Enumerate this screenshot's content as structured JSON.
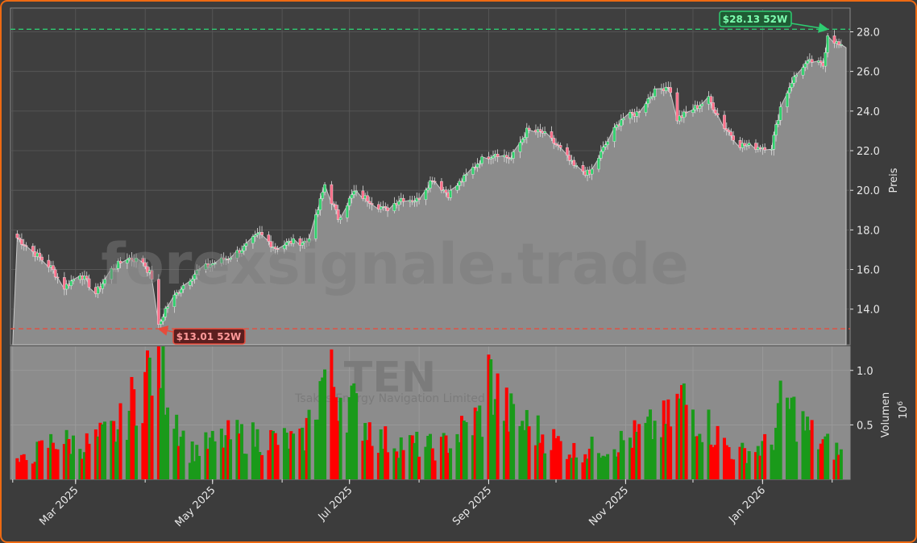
{
  "chart_data": [
    {
      "type": "candlestick",
      "ticker": "TEN",
      "watermark": "forexsignale.trade",
      "company_name": "Tsakos Energy Navigation Limited",
      "ylabel": "Preis",
      "ylim": [
        12.2,
        29.2
      ],
      "yticks": [
        "14.0",
        "16.0",
        "18.0",
        "20.0",
        "22.0",
        "24.0",
        "26.0",
        "28.0"
      ],
      "xlim": [
        "2025-01-31",
        "2026-02-09"
      ],
      "xticks": [
        {
          "date": "2025-03-01",
          "label": "Mar 2025"
        },
        {
          "date": "2025-05-01",
          "label": "May 2025"
        },
        {
          "date": "2025-07-01",
          "label": "Jul 2025"
        },
        {
          "date": "2025-09-01",
          "label": "Sep 2025"
        },
        {
          "date": "2025-11-01",
          "label": "Nov 2025"
        },
        {
          "date": "2026-01-01",
          "label": "Jan 2026"
        }
      ],
      "high_52w": {
        "value": 28.13,
        "label": "$28.13 52W",
        "date": "2026-01-30"
      },
      "low_52w": {
        "value": 13.01,
        "label": "$13.01 52W",
        "date": "2025-04-07"
      },
      "last_close": 27.2,
      "colors": {
        "up": "#1a9a1a",
        "down": "#ff0000",
        "high_line": "#2ecc71",
        "low_line": "#e74c3c",
        "area": "#8c8c8c",
        "grid": "#5a5a5a"
      },
      "close_series": [
        {
          "date": "2025-02-01",
          "close": 17.8
        },
        {
          "date": "2025-02-10",
          "close": 16.9
        },
        {
          "date": "2025-02-18",
          "close": 16.1
        },
        {
          "date": "2025-02-24",
          "close": 15.1
        },
        {
          "date": "2025-03-03",
          "close": 15.8
        },
        {
          "date": "2025-03-10",
          "close": 14.8
        },
        {
          "date": "2025-03-17",
          "close": 16.0
        },
        {
          "date": "2025-03-24",
          "close": 16.6
        },
        {
          "date": "2025-03-31",
          "close": 16.4
        },
        {
          "date": "2025-04-04",
          "close": 15.6
        },
        {
          "date": "2025-04-07",
          "close": 13.1
        },
        {
          "date": "2025-04-10",
          "close": 14.0
        },
        {
          "date": "2025-04-17",
          "close": 15.1
        },
        {
          "date": "2025-04-24",
          "close": 15.9
        },
        {
          "date": "2025-05-01",
          "close": 16.3
        },
        {
          "date": "2025-05-08",
          "close": 16.6
        },
        {
          "date": "2025-05-15",
          "close": 17.1
        },
        {
          "date": "2025-05-22",
          "close": 17.8
        },
        {
          "date": "2025-05-29",
          "close": 17.1
        },
        {
          "date": "2025-06-05",
          "close": 17.4
        },
        {
          "date": "2025-06-12",
          "close": 17.4
        },
        {
          "date": "2025-06-16",
          "close": 18.6
        },
        {
          "date": "2025-06-20",
          "close": 20.3
        },
        {
          "date": "2025-06-26",
          "close": 18.6
        },
        {
          "date": "2025-07-03",
          "close": 19.9
        },
        {
          "date": "2025-07-10",
          "close": 19.5
        },
        {
          "date": "2025-07-17",
          "close": 19.0
        },
        {
          "date": "2025-07-24",
          "close": 19.6
        },
        {
          "date": "2025-07-31",
          "close": 19.5
        },
        {
          "date": "2025-08-07",
          "close": 20.6
        },
        {
          "date": "2025-08-14",
          "close": 19.8
        },
        {
          "date": "2025-08-21",
          "close": 20.6
        },
        {
          "date": "2025-08-28",
          "close": 21.5
        },
        {
          "date": "2025-09-04",
          "close": 21.9
        },
        {
          "date": "2025-09-11",
          "close": 21.6
        },
        {
          "date": "2025-09-18",
          "close": 23.0
        },
        {
          "date": "2025-09-25",
          "close": 22.9
        },
        {
          "date": "2025-10-02",
          "close": 22.2
        },
        {
          "date": "2025-10-09",
          "close": 21.2
        },
        {
          "date": "2025-10-16",
          "close": 20.8
        },
        {
          "date": "2025-10-23",
          "close": 22.3
        },
        {
          "date": "2025-10-30",
          "close": 23.6
        },
        {
          "date": "2025-11-06",
          "close": 23.9
        },
        {
          "date": "2025-11-13",
          "close": 24.9
        },
        {
          "date": "2025-11-20",
          "close": 25.3
        },
        {
          "date": "2025-11-24",
          "close": 23.6
        },
        {
          "date": "2025-12-01",
          "close": 24.1
        },
        {
          "date": "2025-12-08",
          "close": 24.6
        },
        {
          "date": "2025-12-15",
          "close": 23.2
        },
        {
          "date": "2025-12-22",
          "close": 22.3
        },
        {
          "date": "2025-12-29",
          "close": 22.2
        },
        {
          "date": "2026-01-05",
          "close": 22.2
        },
        {
          "date": "2026-01-09",
          "close": 24.2
        },
        {
          "date": "2026-01-14",
          "close": 25.5
        },
        {
          "date": "2026-01-19",
          "close": 26.3
        },
        {
          "date": "2026-01-23",
          "close": 26.5
        },
        {
          "date": "2026-01-28",
          "close": 26.3
        },
        {
          "date": "2026-01-30",
          "close": 27.9
        },
        {
          "date": "2026-02-05",
          "close": 27.2
        }
      ]
    },
    {
      "type": "bar",
      "ylabel": "Volumen",
      "yscale_label": "10",
      "yscale_exp": "6",
      "ylim": [
        0,
        1.22
      ],
      "yticks": [
        "0.5",
        "1.0"
      ],
      "series_info": "green = up day, red = down day",
      "volume_points": [
        {
          "date": "2025-02-05",
          "value": 0.17
        },
        {
          "date": "2025-02-20",
          "value": 0.38
        },
        {
          "date": "2025-03-05",
          "value": 0.33
        },
        {
          "date": "2025-03-20",
          "value": 0.48
        },
        {
          "date": "2025-04-07",
          "value": 1.22
        },
        {
          "date": "2025-04-09",
          "value": 1.05
        },
        {
          "date": "2025-04-20",
          "value": 0.26
        },
        {
          "date": "2025-05-10",
          "value": 0.42
        },
        {
          "date": "2025-06-10",
          "value": 0.36
        },
        {
          "date": "2025-06-20",
          "value": 1.02
        },
        {
          "date": "2025-06-28",
          "value": 0.82
        },
        {
          "date": "2025-07-15",
          "value": 0.38
        },
        {
          "date": "2025-08-10",
          "value": 0.3
        },
        {
          "date": "2025-08-30",
          "value": 0.63
        },
        {
          "date": "2025-09-01",
          "value": 0.98
        },
        {
          "date": "2025-09-10",
          "value": 0.62
        },
        {
          "date": "2025-10-10",
          "value": 0.26
        },
        {
          "date": "2025-10-30",
          "value": 0.36
        },
        {
          "date": "2025-11-20",
          "value": 0.56
        },
        {
          "date": "2025-11-26",
          "value": 0.78
        },
        {
          "date": "2025-12-20",
          "value": 0.24
        },
        {
          "date": "2026-01-05",
          "value": 0.34
        },
        {
          "date": "2026-01-10",
          "value": 0.77
        },
        {
          "date": "2026-01-25",
          "value": 0.38
        },
        {
          "date": "2026-02-05",
          "value": 0.26
        }
      ]
    }
  ]
}
